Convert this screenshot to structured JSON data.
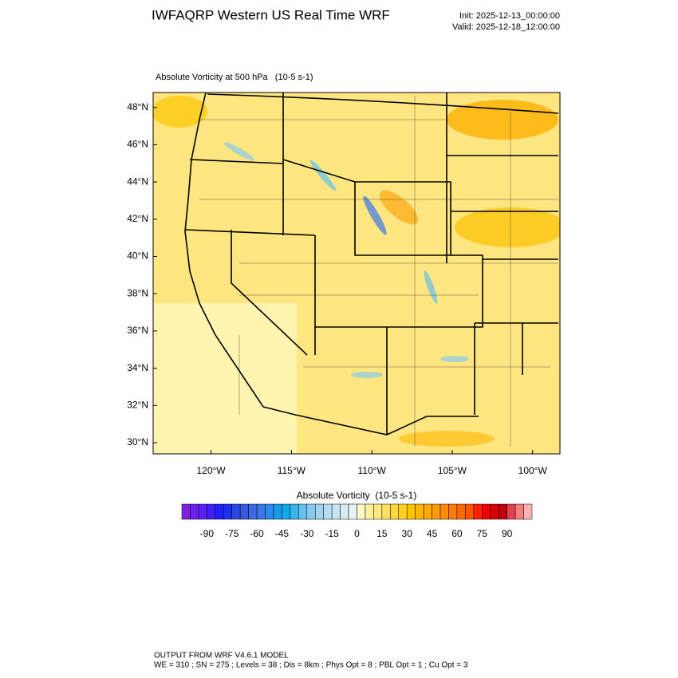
{
  "header": {
    "title": "IWFAQRP Western US Real Time WRF",
    "init": "Init: 2025-12-13_00:00:00",
    "valid": "Valid: 2025-12-18_12:00:00"
  },
  "map": {
    "subtitle": "Absolute Vorticity at 500 hPa   (10-5 s-1)",
    "xlim": [
      -123.6,
      -98.3
    ],
    "ylim": [
      29.4,
      48.8
    ],
    "xticks": [
      {
        "value": -120,
        "label": "120°W"
      },
      {
        "value": -115,
        "label": "115°W"
      },
      {
        "value": -110,
        "label": "110°W"
      },
      {
        "value": -105,
        "label": "105°W"
      },
      {
        "value": -100,
        "label": "100°W"
      }
    ],
    "yticks": [
      {
        "value": 30,
        "label": "30°N"
      },
      {
        "value": 32,
        "label": "32°N"
      },
      {
        "value": 34,
        "label": "34°N"
      },
      {
        "value": 36,
        "label": "36°N"
      },
      {
        "value": 38,
        "label": "38°N"
      },
      {
        "value": 40,
        "label": "40°N"
      },
      {
        "value": 42,
        "label": "42°N"
      },
      {
        "value": 44,
        "label": "44°N"
      },
      {
        "value": 46,
        "label": "46°N"
      },
      {
        "value": 48,
        "label": "48°N"
      }
    ]
  },
  "colorbar": {
    "title": "Absolute Vorticity  (10-5 s-1)",
    "ticks": [
      -90,
      -75,
      -60,
      -45,
      -30,
      -15,
      0,
      15,
      30,
      45,
      60,
      75,
      90
    ],
    "colors": [
      "#7f1fdf",
      "#6b1fea",
      "#5a20f2",
      "#3f20f5",
      "#2020ff",
      "#1f30f0",
      "#2a48e0",
      "#3858e0",
      "#3d68e6",
      "#3a78ea",
      "#2a8aee",
      "#159aee",
      "#12a8ec",
      "#3ab4ec",
      "#64c0ec",
      "#88cbec",
      "#a2d4ee",
      "#b5dcef",
      "#c8e4f2",
      "#d8ecf4",
      "#e6f2f6",
      "#fff8c8",
      "#fff0a0",
      "#ffe880",
      "#ffe060",
      "#ffd840",
      "#ffd020",
      "#ffc400",
      "#ffb800",
      "#ffaa00",
      "#ff9c00",
      "#ff8c00",
      "#ff7c00",
      "#ff6a00",
      "#ff5800",
      "#ff2000",
      "#f00000",
      "#d80000",
      "#c00010",
      "#e04050",
      "#f08080",
      "#ffb0b0"
    ]
  },
  "footer": {
    "line1": "OUTPUT FROM WRF V4.6.1 MODEL",
    "line2": "WE = 310 ; SN = 275 ; Levels = 38 ; Dis = 8km ; Phys Opt = 8 ; PBL Opt = 1 ; Cu Opt = 3"
  }
}
